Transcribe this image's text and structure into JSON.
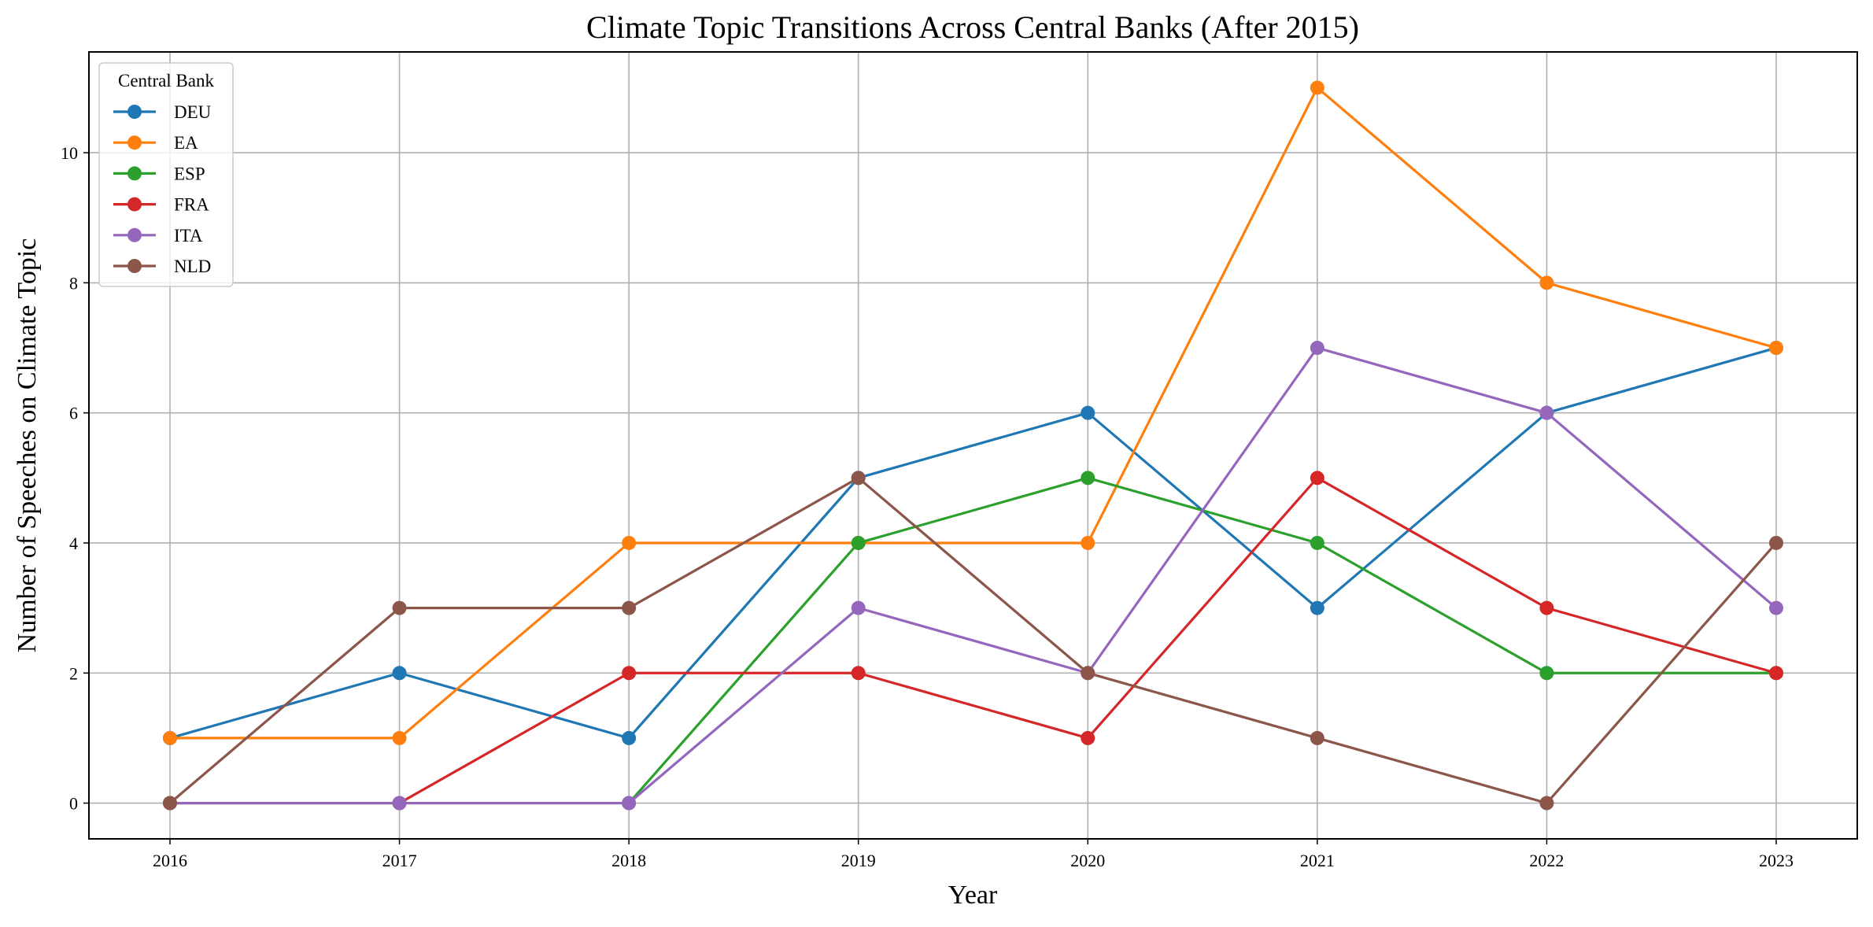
{
  "chart_data": {
    "type": "line",
    "title": "Climate Topic Transitions Across Central Banks (After 2015)",
    "xlabel": "Year",
    "ylabel": "Number of Speeches on Climate Topic",
    "x": [
      "2016",
      "2017",
      "2018",
      "2019",
      "2020",
      "2021",
      "2022",
      "2023"
    ],
    "y_ticks": [
      "0",
      "2",
      "4",
      "6",
      "8",
      "10"
    ],
    "ylim": [
      -0.55,
      11.55
    ],
    "grid": true,
    "legend_position": "top-left",
    "legend_title": "Central Bank",
    "series": [
      {
        "name": "DEU",
        "color": "#1f77b4",
        "values": [
          1,
          2,
          1,
          5,
          6,
          3,
          6,
          7
        ]
      },
      {
        "name": "EA",
        "color": "#ff7f0e",
        "values": [
          1,
          1,
          4,
          4,
          4,
          11,
          8,
          7
        ]
      },
      {
        "name": "ESP",
        "color": "#2ca02c",
        "values": [
          0,
          0,
          0,
          4,
          5,
          4,
          2,
          2
        ]
      },
      {
        "name": "FRA",
        "color": "#d62728",
        "values": [
          0,
          0,
          2,
          2,
          1,
          5,
          3,
          2
        ]
      },
      {
        "name": "ITA",
        "color": "#9467bd",
        "values": [
          0,
          0,
          0,
          3,
          2,
          7,
          6,
          3
        ]
      },
      {
        "name": "NLD",
        "color": "#8c564b",
        "values": [
          0,
          3,
          3,
          5,
          2,
          1,
          0,
          4
        ]
      }
    ]
  }
}
